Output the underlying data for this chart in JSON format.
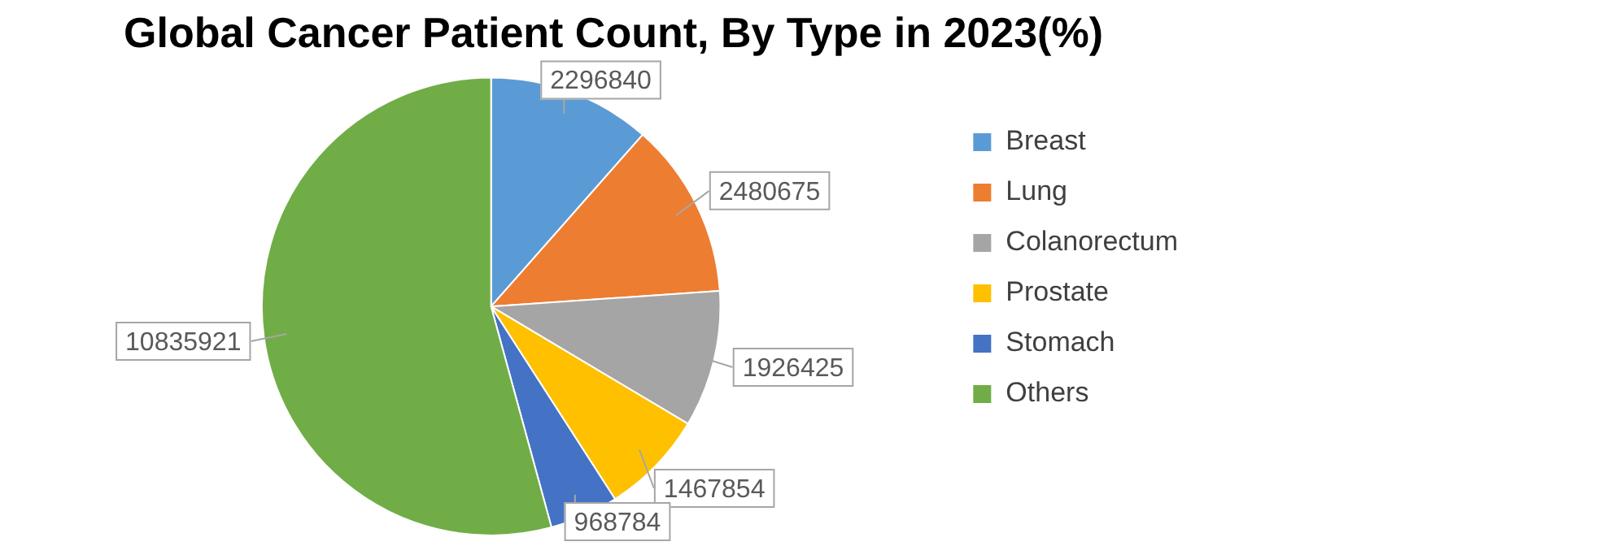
{
  "chart_data": {
    "type": "pie",
    "title": "Global Cancer Patient Count, By Type in 2023(%)",
    "categories": [
      "Breast",
      "Lung",
      "Colanorectum",
      "Prostate",
      "Stomach",
      "Others"
    ],
    "values": [
      2296840,
      2480675,
      1926425,
      1467854,
      968784,
      10835921
    ],
    "colors": [
      "#5b9bd5",
      "#ed7d31",
      "#a5a5a5",
      "#ffc000",
      "#4472c4",
      "#70ad47"
    ],
    "data_labels": true,
    "legend": "right"
  }
}
